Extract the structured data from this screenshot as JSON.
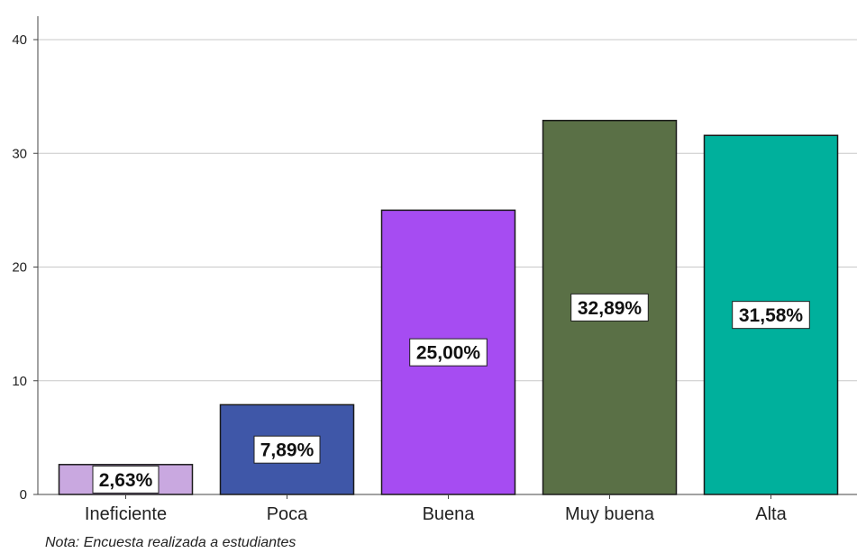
{
  "chart_data": {
    "type": "bar",
    "categories": [
      "Ineficiente",
      "Poca",
      "Buena",
      "Muy buena",
      "Alta"
    ],
    "values": [
      2.63,
      7.89,
      25.0,
      32.89,
      31.58
    ],
    "data_labels": [
      "2,63%",
      "7,89%",
      "25,00%",
      "32,89%",
      "31,58%"
    ],
    "colors": [
      "#c9a8e0",
      "#3f57a8",
      "#a64cf2",
      "#5a7046",
      "#00b09c"
    ],
    "ylim": [
      0,
      40
    ],
    "yticks": [
      "0",
      "10",
      "20",
      "30",
      "40"
    ],
    "grid": true
  },
  "note": "Nota: Encuesta realizada a estudiantes"
}
